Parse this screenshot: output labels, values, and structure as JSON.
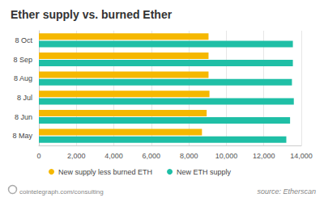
{
  "chart_data": {
    "type": "bar",
    "orientation": "horizontal",
    "title": "Ether supply vs. burned Ether",
    "categories": [
      "8 May",
      "8 Jun",
      "8 Jul",
      "8 Aug",
      "8 Sep",
      "8 Oct"
    ],
    "series": [
      {
        "name": "New supply less burned ETH",
        "color": "#f5b800",
        "values": [
          8700,
          8950,
          9100,
          9050,
          9050,
          9050
        ]
      },
      {
        "name": "New ETH supply",
        "color": "#1fbfa6",
        "values": [
          13200,
          13400,
          13600,
          13500,
          13550,
          13550
        ]
      }
    ],
    "xlim": [
      0,
      14000
    ],
    "xticks": [
      0,
      {
        "value": 2000,
        "label": "2,000"
      },
      {
        "value": 4000,
        "label": "4,000"
      },
      {
        "value": 6000,
        "label": "6,000"
      },
      {
        "value": 8000,
        "label": "8,000"
      },
      {
        "value": 10000,
        "label": "10,000"
      },
      {
        "value": 12000,
        "label": "12,000"
      },
      {
        "value": 14000,
        "label": "14,000"
      }
    ],
    "grid": true,
    "legend": "bottom",
    "annotations": [
      "cointelegraph.com/consulting",
      "source: Etherscan"
    ]
  }
}
